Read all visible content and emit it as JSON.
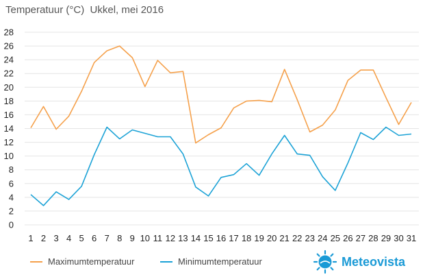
{
  "chart_data": {
    "type": "line",
    "title": "Temperatuur (°C)  Ukkel, mei 2016",
    "xlabel": "",
    "ylabel": "",
    "categories": [
      "1",
      "2",
      "3",
      "4",
      "5",
      "6",
      "7",
      "8",
      "9",
      "10",
      "11",
      "12",
      "13",
      "14",
      "15",
      "16",
      "17",
      "18",
      "19",
      "20",
      "21",
      "22",
      "23",
      "24",
      "25",
      "26",
      "27",
      "28",
      "29",
      "30",
      "31"
    ],
    "ylim": [
      0,
      28
    ],
    "yticks": [
      "0",
      "2",
      "4",
      "6",
      "8",
      "10",
      "12",
      "14",
      "16",
      "18",
      "20",
      "22",
      "24",
      "26",
      "28"
    ],
    "grid": true,
    "legend_position": "bottom",
    "series": [
      {
        "name": "Maximumtemperatuur",
        "color": "#f5a04a",
        "values": [
          14.1,
          17.2,
          13.9,
          15.8,
          19.4,
          23.6,
          25.3,
          26.0,
          24.3,
          20.1,
          23.9,
          22.1,
          22.3,
          11.9,
          13.1,
          14.1,
          17.0,
          18.0,
          18.1,
          17.9,
          22.6,
          18.2,
          13.5,
          14.5,
          16.7,
          21.0,
          22.5,
          22.5,
          18.5,
          14.6,
          17.8
        ]
      },
      {
        "name": "Minimumtemperatuur",
        "color": "#1ba2d6",
        "values": [
          4.4,
          2.8,
          4.8,
          3.7,
          5.6,
          10.2,
          14.2,
          12.5,
          13.8,
          13.3,
          12.8,
          12.8,
          10.3,
          5.5,
          4.2,
          6.9,
          7.3,
          8.9,
          7.2,
          10.3,
          13.0,
          10.3,
          10.1,
          7.0,
          5.0,
          9.0,
          13.4,
          12.4,
          14.2,
          13.0,
          13.2
        ]
      }
    ]
  },
  "brand": {
    "name": "Meteovista",
    "logo_icon": "sun-icon",
    "color": "#1a9ad6"
  }
}
